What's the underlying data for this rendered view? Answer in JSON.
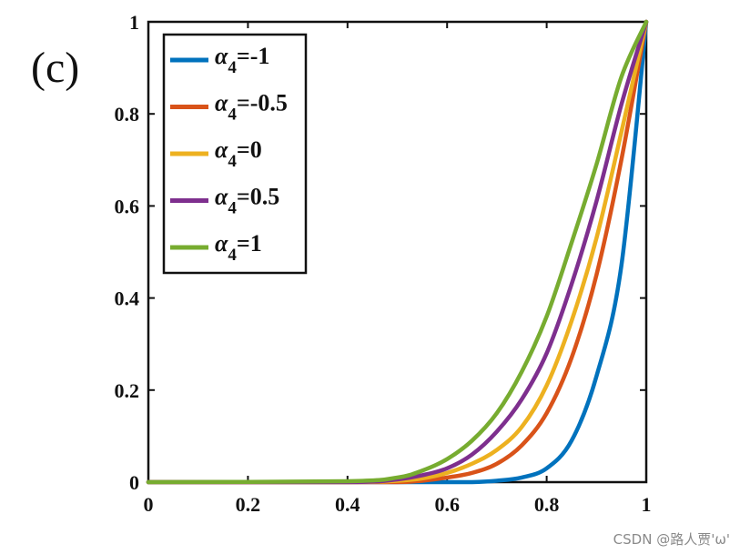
{
  "panel_label": "(c)",
  "watermark": "CSDN @路人贾'ω'",
  "chart_data": {
    "type": "line",
    "title": "",
    "xlabel": "",
    "ylabel": "",
    "xlim": [
      0,
      1
    ],
    "ylim": [
      0,
      1
    ],
    "x_ticks": [
      "0",
      "0.2",
      "0.4",
      "0.6",
      "0.8",
      "1"
    ],
    "y_ticks": [
      "0",
      "0.2",
      "0.4",
      "0.6",
      "0.8",
      "1"
    ],
    "grid": false,
    "legend_position": "top-left",
    "legend_symbol": "α",
    "legend_subscript": "4",
    "x": [
      0,
      0.4,
      0.5,
      0.55,
      0.6,
      0.65,
      0.7,
      0.75,
      0.8,
      0.85,
      0.9,
      0.95,
      1
    ],
    "series": [
      {
        "name": "=-1",
        "color": "#0072BD",
        "values": [
          0,
          0,
          0,
          0,
          0,
          0,
          0.003,
          0.01,
          0.03,
          0.09,
          0.23,
          0.47,
          1
        ]
      },
      {
        "name": "=-0.5",
        "color": "#D95319",
        "values": [
          0,
          0,
          0,
          0.003,
          0.01,
          0.02,
          0.04,
          0.08,
          0.15,
          0.27,
          0.45,
          0.7,
          1
        ]
      },
      {
        "name": "=0",
        "color": "#EDB120",
        "values": [
          0,
          0,
          0.003,
          0.008,
          0.02,
          0.04,
          0.07,
          0.12,
          0.21,
          0.35,
          0.53,
          0.76,
          1
        ]
      },
      {
        "name": "=0.5",
        "color": "#7E2F8E",
        "values": [
          0,
          0,
          0.006,
          0.015,
          0.03,
          0.06,
          0.11,
          0.18,
          0.28,
          0.43,
          0.61,
          0.82,
          1
        ]
      },
      {
        "name": "=1",
        "color": "#77AC30",
        "values": [
          0,
          0.002,
          0.01,
          0.025,
          0.05,
          0.09,
          0.15,
          0.24,
          0.36,
          0.52,
          0.69,
          0.88,
          1
        ]
      }
    ]
  }
}
